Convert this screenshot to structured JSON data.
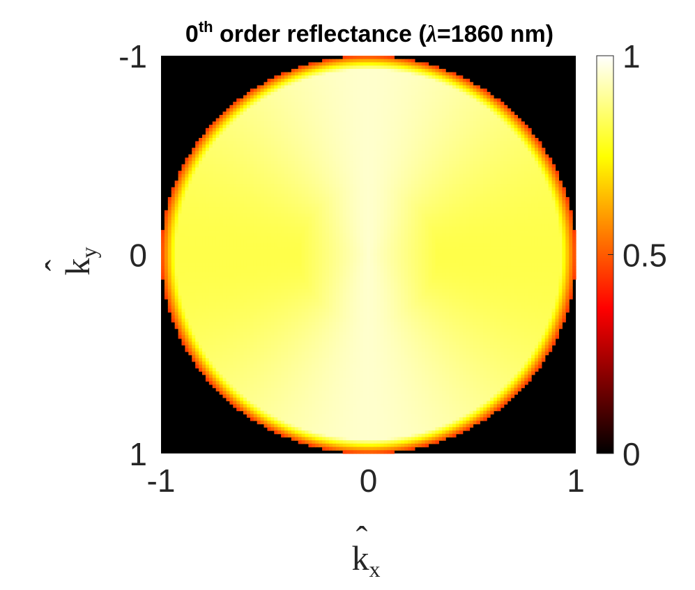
{
  "chart_data": {
    "type": "heatmap",
    "title": {
      "order_base": "0",
      "order_sup": "th",
      "rest": " order reflectance (",
      "lambda": "λ",
      "wavelength": "=1860 nm)"
    },
    "xlabel": {
      "hat": "ˆ",
      "base": "k",
      "sub": "x"
    },
    "ylabel": {
      "hat": "ˆ",
      "base": "k",
      "sub": "y"
    },
    "xlim": [
      -1,
      1
    ],
    "ylim": [
      -1,
      1
    ],
    "y_reversed": true,
    "x_ticks": [
      "-1",
      "0",
      "1"
    ],
    "y_ticks": [
      "-1",
      "0",
      "1"
    ],
    "colormap": "hot",
    "clim": [
      0,
      1
    ],
    "colorbar_ticks": [
      "0",
      "0.5",
      "1"
    ],
    "grid_resolution": 121,
    "values_description_levels": {
      "outside_unit_circle": 0,
      "center": 0.95,
      "near_vertical_axis": 0.95,
      "horizontal_edges": 0.82,
      "rim": 0.45
    },
    "colors": {
      "background": "#000000",
      "axis_text": "#262626",
      "title_text": "#000000"
    }
  }
}
